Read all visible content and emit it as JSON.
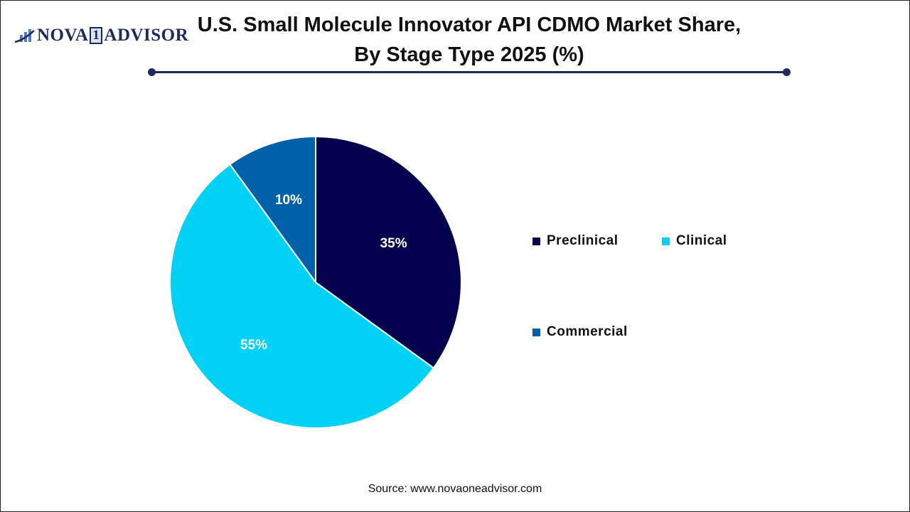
{
  "logo": {
    "text_a": "NOVA",
    "text_one": "1",
    "text_b": "ADVISOR"
  },
  "chart_data": {
    "type": "pie",
    "title": "U.S. Small Molecule Innovator API CDMO Market Share, By Stage Type 2025 (%)",
    "title_line1": "U.S. Small Molecule Innovator API CDMO Market Share,",
    "title_line2": "By Stage Type 2025 (%)",
    "categories": [
      "Preclinical",
      "Clinical",
      "Commercial"
    ],
    "values": [
      35,
      55,
      10
    ],
    "labels": [
      "35%",
      "55%",
      "10%"
    ],
    "colors": [
      "#03024f",
      "#00d2f6",
      "#0061a8"
    ],
    "legend_placement": "right",
    "start_angle": "top, clockwise"
  },
  "source": "Source: www.novaoneadvisor.com"
}
